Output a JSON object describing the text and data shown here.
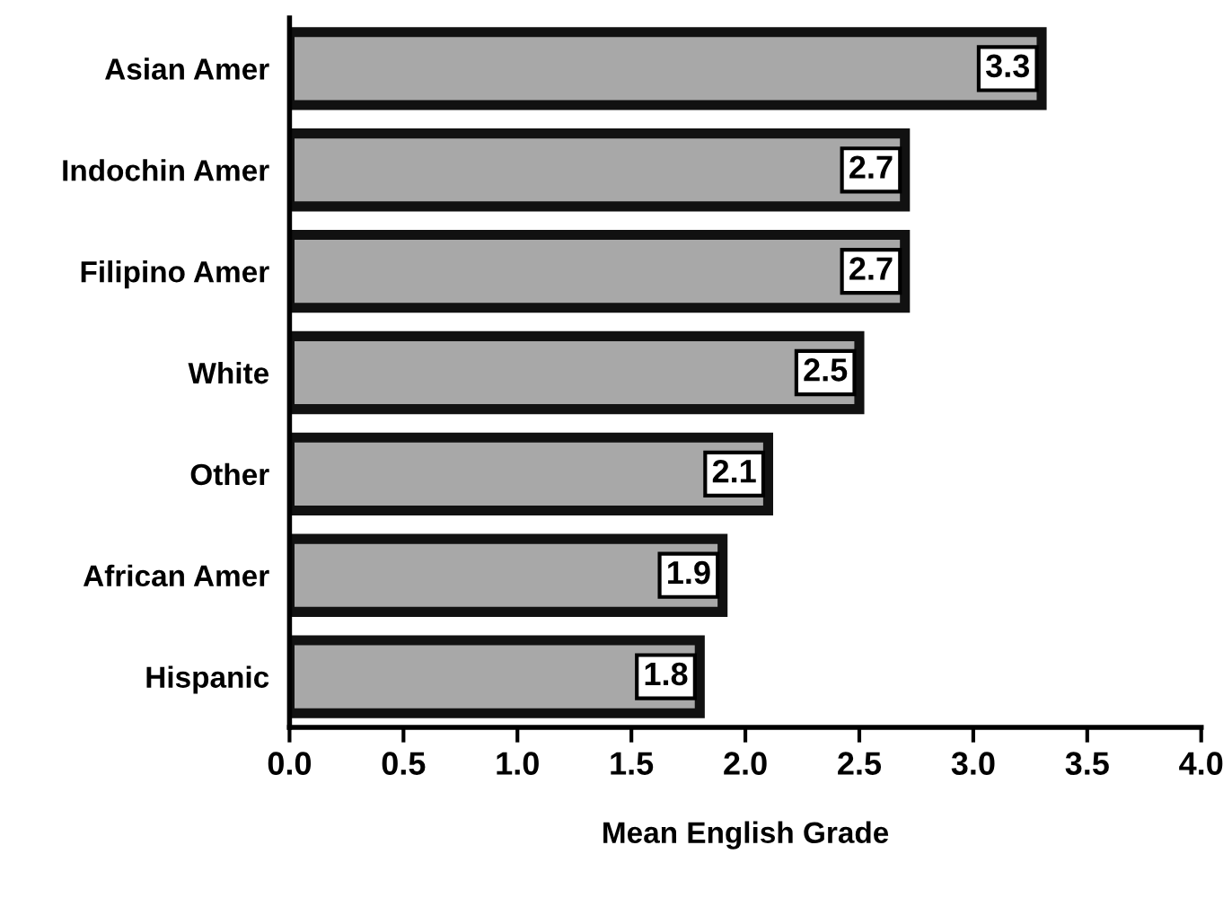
{
  "chart_data": {
    "type": "bar",
    "orientation": "horizontal",
    "xlabel": "Mean English Grade",
    "categories": [
      "Asian Amer",
      "Indochin Amer",
      "Filipino Amer",
      "White",
      "Other",
      "African Amer",
      "Hispanic"
    ],
    "values": [
      3.3,
      2.7,
      2.7,
      2.5,
      2.1,
      1.9,
      1.8
    ],
    "color": "#a8a8a8",
    "data_labels": true,
    "grid": false,
    "xlim": [
      0,
      4
    ],
    "xticks": [
      {
        "value": 0,
        "label": "0.0"
      },
      {
        "value": 0.5,
        "label": "0.5"
      },
      {
        "value": 1,
        "label": "1.0"
      },
      {
        "value": 1.5,
        "label": "1.5"
      },
      {
        "value": 2,
        "label": "2.0"
      },
      {
        "value": 2.5,
        "label": "2.5"
      },
      {
        "value": 3,
        "label": "3.0"
      },
      {
        "value": 3.5,
        "label": "3.5"
      },
      {
        "value": 4,
        "label": "4.0"
      }
    ]
  }
}
